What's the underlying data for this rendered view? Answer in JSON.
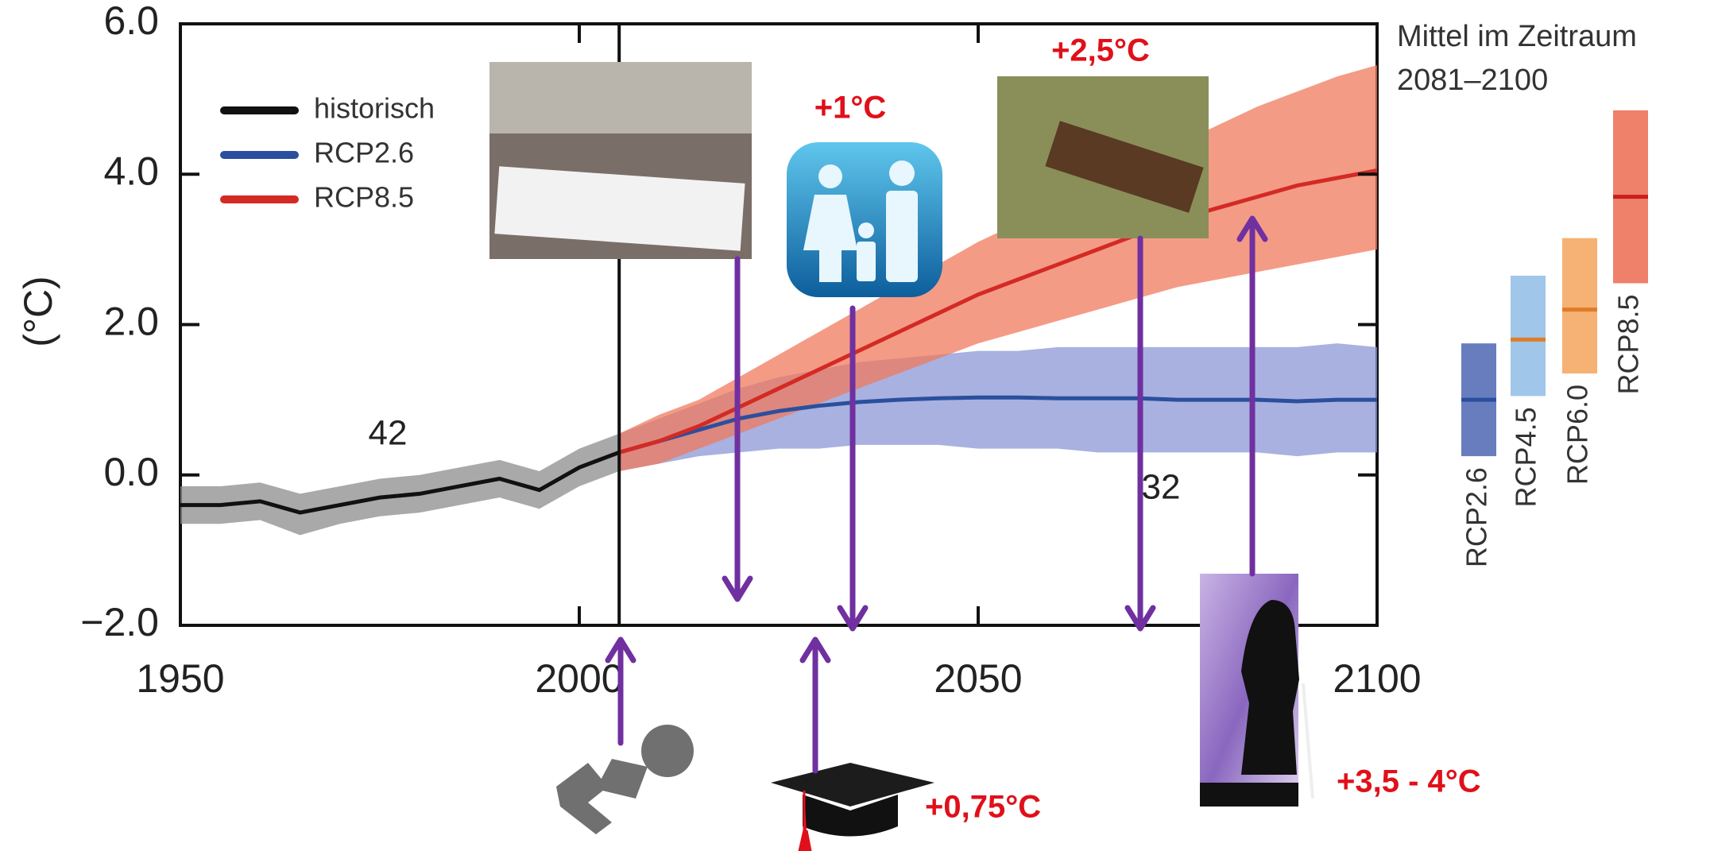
{
  "chart_data": {
    "type": "line",
    "y_label": "(°C)",
    "xlim": [
      1950,
      2100
    ],
    "ylim": [
      -2,
      6
    ],
    "xticks": [
      1950,
      2000,
      2050,
      2100
    ],
    "yticks": [
      {
        "value": -2,
        "label": "−2.0"
      },
      {
        "value": 0,
        "label": "0.0"
      },
      {
        "value": 2,
        "label": "2.0"
      },
      {
        "value": 4,
        "label": "4.0"
      },
      {
        "value": 6,
        "label": "6.0"
      }
    ],
    "legend": "upper left",
    "marker_year": 2005,
    "series": [
      {
        "name": "historisch",
        "color": "#111111",
        "band_color": "#8c8c8c",
        "x": [
          1950,
          1955,
          1960,
          1965,
          1970,
          1975,
          1980,
          1985,
          1990,
          1995,
          2000,
          2005
        ],
        "values": [
          -0.4,
          -0.4,
          -0.35,
          -0.5,
          -0.4,
          -0.3,
          -0.25,
          -0.15,
          -0.05,
          -0.2,
          0.1,
          0.3
        ],
        "lower": [
          -0.65,
          -0.65,
          -0.6,
          -0.8,
          -0.65,
          -0.55,
          -0.5,
          -0.4,
          -0.3,
          -0.45,
          -0.15,
          0.05
        ],
        "upper": [
          -0.15,
          -0.15,
          -0.1,
          -0.25,
          -0.15,
          -0.05,
          0,
          0.1,
          0.2,
          0.05,
          0.35,
          0.55
        ]
      },
      {
        "name": "RCP2.6",
        "color": "#2b4f9e",
        "band_color": "#8b97d6",
        "x": [
          2005,
          2010,
          2015,
          2020,
          2025,
          2030,
          2035,
          2040,
          2045,
          2050,
          2055,
          2060,
          2065,
          2070,
          2075,
          2080,
          2085,
          2090,
          2095,
          2100
        ],
        "values": [
          0.3,
          0.45,
          0.6,
          0.75,
          0.85,
          0.92,
          0.97,
          1.0,
          1.02,
          1.03,
          1.03,
          1.02,
          1.02,
          1.02,
          1.0,
          1.0,
          1.0,
          0.98,
          1.0,
          1.0
        ],
        "lower": [
          0.05,
          0.15,
          0.25,
          0.3,
          0.35,
          0.35,
          0.4,
          0.4,
          0.4,
          0.35,
          0.35,
          0.35,
          0.3,
          0.3,
          0.3,
          0.3,
          0.3,
          0.25,
          0.3,
          0.3
        ],
        "upper": [
          0.55,
          0.75,
          0.95,
          1.15,
          1.3,
          1.4,
          1.5,
          1.55,
          1.6,
          1.65,
          1.65,
          1.7,
          1.7,
          1.7,
          1.7,
          1.7,
          1.7,
          1.7,
          1.75,
          1.7
        ]
      },
      {
        "name": "RCP8.5",
        "color": "#d42a24",
        "band_color": "#f07a5e",
        "x": [
          2005,
          2010,
          2015,
          2020,
          2025,
          2030,
          2035,
          2040,
          2045,
          2050,
          2055,
          2060,
          2065,
          2070,
          2075,
          2080,
          2085,
          2090,
          2095,
          2100
        ],
        "values": [
          0.3,
          0.45,
          0.65,
          0.9,
          1.15,
          1.4,
          1.65,
          1.9,
          2.15,
          2.4,
          2.6,
          2.8,
          3.0,
          3.2,
          3.4,
          3.55,
          3.7,
          3.85,
          3.95,
          4.05
        ],
        "lower": [
          0.05,
          0.15,
          0.35,
          0.55,
          0.75,
          0.95,
          1.15,
          1.35,
          1.55,
          1.75,
          1.9,
          2.05,
          2.2,
          2.35,
          2.5,
          2.6,
          2.7,
          2.8,
          2.9,
          3.0
        ],
        "upper": [
          0.55,
          0.8,
          1.0,
          1.3,
          1.6,
          1.9,
          2.2,
          2.5,
          2.8,
          3.1,
          3.35,
          3.65,
          3.9,
          4.15,
          4.4,
          4.65,
          4.9,
          5.1,
          5.3,
          5.45
        ]
      }
    ],
    "annotations": [
      {
        "text": "42",
        "color": "#222222"
      },
      {
        "text": "32",
        "color": "#4a5f9e"
      }
    ],
    "range_title": [
      "Mittel im Zeitraum",
      "2081–2100"
    ],
    "range_bars": [
      {
        "name": "RCP2.6",
        "color": "#4c66b3",
        "low": 0.25,
        "mean": 1.0,
        "high": 1.75
      },
      {
        "name": "RCP4.5",
        "color": "#8fbce6",
        "low": 1.05,
        "mean": 1.8,
        "high": 2.65
      },
      {
        "name": "RCP6.0",
        "color": "#f5a35c",
        "low": 1.35,
        "mean": 2.2,
        "high": 3.15
      },
      {
        "name": "RCP8.5",
        "color": "#ec6a50",
        "low": 2.55,
        "mean": 3.7,
        "high": 4.85
      }
    ],
    "callouts": [
      "+1°C",
      "+2,5°C",
      "+0,75°C",
      "+3,5 - 4°C"
    ]
  }
}
